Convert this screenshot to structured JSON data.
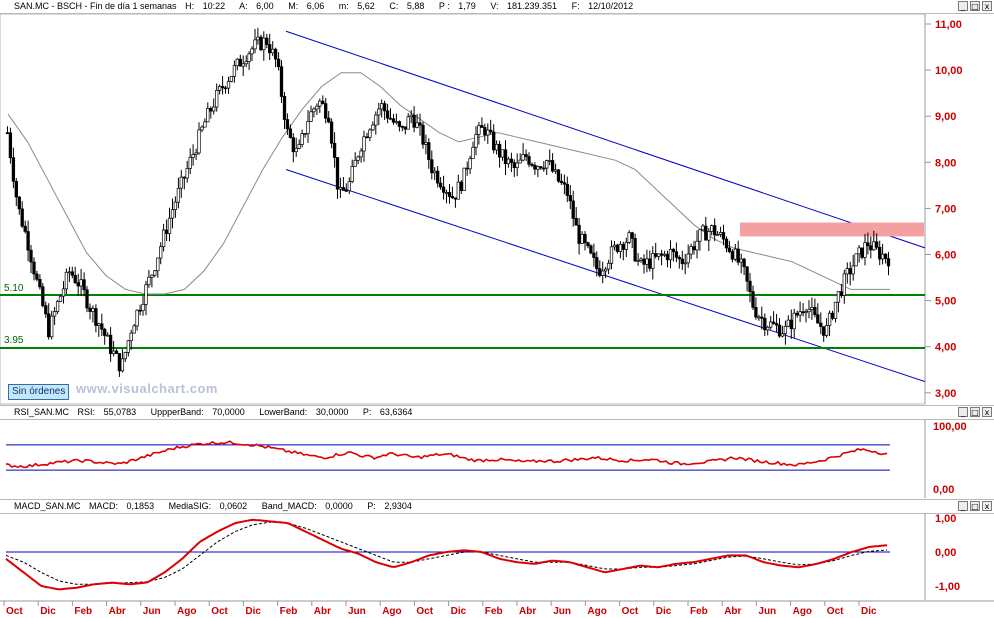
{
  "header_main": {
    "symbol": "SAN.MC - BSCH - Fin de día 1 semanas",
    "high_label": "H:",
    "high": "10:22",
    "open_label": "A:",
    "open": "6,00",
    "max_label": "M:",
    "max": "6,06",
    "min_label": "m:",
    "min": "5,62",
    "close_label": "C:",
    "close": "5,88",
    "p_label": "P :",
    "p": "1,79",
    "vol_label": "V:",
    "vol": "181.239.351",
    "date_label": "F:",
    "date": "12/10/2012"
  },
  "header_rsi": {
    "name": "RSI_SAN.MC",
    "rsi_label": "RSI:",
    "rsi": "55,0783",
    "upper_label": "UppperBand:",
    "upper": "70,0000",
    "lower_label": "LowerBand:",
    "lower": "30,0000",
    "p_label": "P:",
    "p": "63,6364"
  },
  "header_macd": {
    "name": "MACD_SAN.MC",
    "macd_label": "MACD:",
    "macd": "0,1853",
    "sig_label": "MediaSIG:",
    "sig": "0,0602",
    "band_label": "Band_MACD:",
    "band": "0,0000",
    "p_label": "P:",
    "p": "2,9304"
  },
  "window_buttons": [
    "_",
    "□",
    "x"
  ],
  "sin_ordenes": "Sin órdenes",
  "watermark": "www.visualchart.com",
  "level_labels": [
    "5.10",
    "3.95"
  ],
  "colors": {
    "price_axis": "#cc0000",
    "support": "#008000",
    "channel": "#0000cc",
    "zone": "#f4a0a0",
    "rsi_line": "#dd0000",
    "macd_line": "#dd0000",
    "signal_line": "#000000"
  },
  "chart_data": [
    {
      "type": "candlestick",
      "title": "SAN.MC - BSCH - Fin de día 1 semanas",
      "ylim": [
        2.8,
        11.2
      ],
      "yticks": [
        "11,00",
        "10,00",
        "9,00",
        "8,00",
        "7,00",
        "6,00",
        "5,00",
        "4,00",
        "3,00"
      ],
      "ytick_values": [
        11,
        10,
        9,
        8,
        7,
        6,
        5,
        4,
        3
      ],
      "xticks": [
        "Oct",
        "Dic",
        "Feb",
        "Abr",
        "Jun",
        "Ago",
        "Oct",
        "Dic",
        "Feb",
        "Abr",
        "Jun",
        "Ago",
        "Oct",
        "Dic",
        "Feb",
        "Abr",
        "Jun",
        "Ago",
        "Oct",
        "Dic",
        "Feb",
        "Abr",
        "Jun",
        "Ago",
        "Oct",
        "Dic"
      ],
      "close_path": [
        8.6,
        7.0,
        6.2,
        5.2,
        4.3,
        5.0,
        5.6,
        5.3,
        4.8,
        4.4,
        3.9,
        3.5,
        4.4,
        5.0,
        5.6,
        6.3,
        7.0,
        7.6,
        8.2,
        8.8,
        9.3,
        9.7,
        10.0,
        10.3,
        10.5,
        10.6,
        10.1,
        8.6,
        8.1,
        8.9,
        9.3,
        9.0,
        7.2,
        7.5,
        8.3,
        8.8,
        9.2,
        8.9,
        8.6,
        9.0,
        8.5,
        7.8,
        7.5,
        7.2,
        7.6,
        8.5,
        8.7,
        8.3,
        8.0,
        7.8,
        8.1,
        7.9,
        8.0,
        7.6,
        7.3,
        6.4,
        6.0,
        5.6,
        5.9,
        6.2,
        6.3,
        5.7,
        5.8,
        5.9,
        6.0,
        5.8,
        6.1,
        6.4,
        6.5,
        6.3,
        6.0,
        5.6,
        4.8,
        4.5,
        4.4,
        4.3,
        4.6,
        4.9,
        4.5,
        4.3,
        5.0,
        5.5,
        5.9,
        6.2,
        6.0,
        5.88
      ],
      "moving_average_path": [
        9.0,
        8.4,
        7.6,
        6.8,
        6.0,
        5.5,
        5.2,
        5.1,
        5.1,
        5.2,
        5.6,
        6.2,
        7.0,
        7.8,
        8.5,
        9.1,
        9.6,
        9.9,
        9.9,
        9.6,
        9.2,
        8.9,
        8.6,
        8.4,
        8.5,
        8.6,
        8.5,
        8.4,
        8.3,
        8.2,
        8.1,
        8.0,
        7.8,
        7.4,
        7.0,
        6.6,
        6.3,
        6.1,
        6.0,
        5.9,
        5.8,
        5.6,
        5.4,
        5.2,
        5.2,
        5.2
      ],
      "support_lines": [
        5.1,
        3.95
      ],
      "channel": {
        "upper_start": 10.8,
        "upper_end": 6.1,
        "lower_start": 7.8,
        "lower_end": 3.2
      },
      "resistance_zone": [
        6.35,
        6.65
      ]
    },
    {
      "type": "line",
      "title": "RSI_SAN.MC",
      "ylim": [
        0,
        100
      ],
      "yticks": [
        "100,00",
        "0,00"
      ],
      "ytick_values": [
        100,
        0
      ],
      "bands": [
        70,
        30
      ],
      "series": [
        {
          "name": "RSI",
          "values": [
            38,
            36,
            37,
            40,
            42,
            44,
            45,
            43,
            41,
            40,
            46,
            52,
            58,
            64,
            68,
            71,
            73,
            74,
            73,
            71,
            68,
            64,
            60,
            56,
            52,
            50,
            55,
            58,
            52,
            50,
            56,
            54,
            50,
            52,
            55,
            54,
            48,
            45,
            47,
            46,
            44,
            43,
            45,
            44,
            46,
            47,
            50,
            48,
            46,
            45,
            47,
            46,
            42,
            40,
            42,
            43,
            46,
            50,
            47,
            44,
            42,
            40,
            38,
            42,
            46,
            52,
            58,
            63,
            60,
            55
          ]
        }
      ]
    },
    {
      "type": "line",
      "title": "MACD_SAN.MC",
      "ylim": [
        -1.2,
        1.2
      ],
      "yticks": [
        "1,00",
        "0,00",
        "-1,00"
      ],
      "ytick_values": [
        1,
        0,
        -1
      ],
      "series": [
        {
          "name": "MACD",
          "values": [
            -0.2,
            -0.6,
            -1.0,
            -1.1,
            -1.05,
            -0.95,
            -0.9,
            -0.95,
            -0.9,
            -0.6,
            -0.2,
            0.3,
            0.6,
            0.85,
            0.95,
            0.9,
            0.85,
            0.6,
            0.35,
            0.1,
            -0.05,
            -0.3,
            -0.45,
            -0.3,
            -0.1,
            0.0,
            0.05,
            0.0,
            -0.2,
            -0.3,
            -0.35,
            -0.25,
            -0.3,
            -0.45,
            -0.6,
            -0.5,
            -0.4,
            -0.45,
            -0.35,
            -0.3,
            -0.2,
            -0.1,
            -0.1,
            -0.3,
            -0.4,
            -0.45,
            -0.35,
            -0.2,
            0.0,
            0.15,
            0.2
          ]
        },
        {
          "name": "MediaSIG",
          "values": [
            -0.1,
            -0.3,
            -0.6,
            -0.85,
            -0.95,
            -0.95,
            -0.92,
            -0.9,
            -0.88,
            -0.75,
            -0.5,
            -0.1,
            0.3,
            0.6,
            0.8,
            0.88,
            0.85,
            0.7,
            0.5,
            0.3,
            0.1,
            -0.1,
            -0.3,
            -0.3,
            -0.2,
            -0.1,
            0.0,
            0.0,
            -0.1,
            -0.2,
            -0.3,
            -0.3,
            -0.3,
            -0.4,
            -0.5,
            -0.5,
            -0.45,
            -0.45,
            -0.4,
            -0.35,
            -0.25,
            -0.15,
            -0.12,
            -0.2,
            -0.3,
            -0.38,
            -0.35,
            -0.25,
            -0.1,
            0.02,
            0.06
          ]
        }
      ]
    }
  ]
}
